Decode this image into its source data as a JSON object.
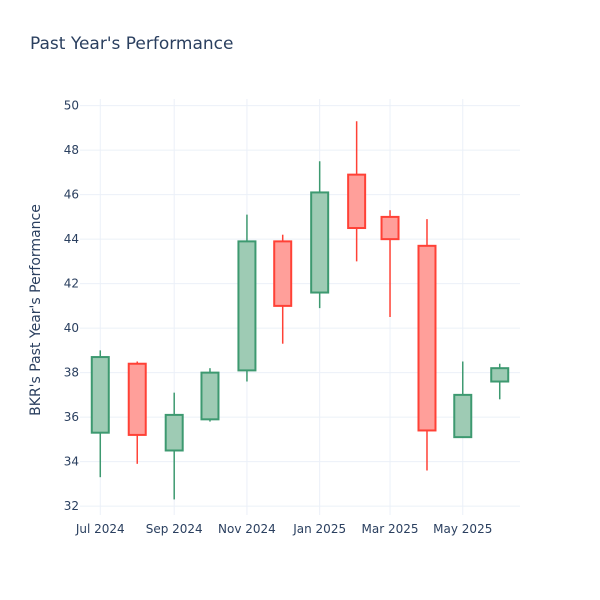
{
  "chart_data": {
    "type": "candlestick",
    "title": "Past Year's Performance",
    "xlabel": "",
    "ylabel": "BKR's Past Year's Performance",
    "ylim": [
      31.6,
      50.3
    ],
    "y_ticks": [
      32,
      34,
      36,
      38,
      40,
      42,
      44,
      46,
      48,
      50
    ],
    "x_ticks": [
      {
        "label": "Jul 2024",
        "date": "2024-07-01"
      },
      {
        "label": "Sep 2024",
        "date": "2024-09-01"
      },
      {
        "label": "Nov 2024",
        "date": "2024-11-01"
      },
      {
        "label": "Jan 2025",
        "date": "2025-01-01"
      },
      {
        "label": "Mar 2025",
        "date": "2025-03-01"
      },
      {
        "label": "May 2025",
        "date": "2025-05-01"
      }
    ],
    "x_range": [
      "2024-06-14",
      "2025-06-18"
    ],
    "grid": true,
    "increasing_color": "#3d9970",
    "increasing_fill": "#9ecbb4",
    "decreasing_color": "#ff4136",
    "decreasing_fill": "#ff9f9a",
    "candles": [
      {
        "date": "2024-07-01",
        "open": 35.3,
        "high": 39.0,
        "low": 33.3,
        "close": 38.7
      },
      {
        "date": "2024-08-01",
        "open": 38.4,
        "high": 38.5,
        "low": 33.9,
        "close": 35.2
      },
      {
        "date": "2024-09-01",
        "open": 34.5,
        "high": 37.1,
        "low": 32.3,
        "close": 36.1
      },
      {
        "date": "2024-10-01",
        "open": 35.9,
        "high": 38.2,
        "low": 35.8,
        "close": 38.0
      },
      {
        "date": "2024-11-01",
        "open": 38.1,
        "high": 45.1,
        "low": 37.6,
        "close": 43.9
      },
      {
        "date": "2024-12-01",
        "open": 43.9,
        "high": 44.2,
        "low": 39.3,
        "close": 41.0
      },
      {
        "date": "2025-01-01",
        "open": 41.6,
        "high": 47.5,
        "low": 40.9,
        "close": 46.1
      },
      {
        "date": "2025-02-01",
        "open": 46.9,
        "high": 49.3,
        "low": 43.0,
        "close": 44.5
      },
      {
        "date": "2025-03-01",
        "open": 45.0,
        "high": 45.3,
        "low": 40.5,
        "close": 44.0
      },
      {
        "date": "2025-04-01",
        "open": 43.7,
        "high": 44.9,
        "low": 33.6,
        "close": 35.4
      },
      {
        "date": "2025-05-01",
        "open": 35.1,
        "high": 38.5,
        "low": 35.1,
        "close": 37.0
      },
      {
        "date": "2025-06-01",
        "open": 37.6,
        "high": 38.4,
        "low": 36.8,
        "close": 38.2
      }
    ]
  }
}
